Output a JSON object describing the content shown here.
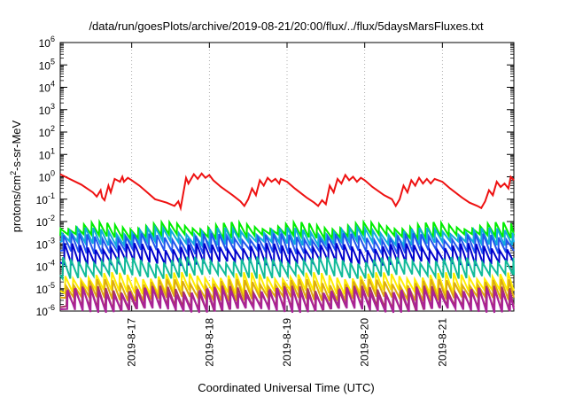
{
  "chart_data": {
    "type": "line",
    "title": "/data/run/goesPlots/archive/2019-08-21/20:00/flux/../flux/5daysMarsFluxes.txt",
    "xlabel": "Coordinated Universal Time (UTC)",
    "ylabel_parts": [
      "protons/cm",
      "2",
      "-s-sr-MeV"
    ],
    "y_scale": "log",
    "ylim": [
      1e-06,
      1000000.0
    ],
    "y_ticks": [
      {
        "base": "10",
        "exp": "6",
        "value": 6
      },
      {
        "base": "10",
        "exp": "5",
        "value": 5
      },
      {
        "base": "10",
        "exp": "4",
        "value": 4
      },
      {
        "base": "10",
        "exp": "3",
        "value": 3
      },
      {
        "base": "10",
        "exp": "2",
        "value": 2
      },
      {
        "base": "10",
        "exp": "1",
        "value": 1
      },
      {
        "base": "10",
        "exp": "0",
        "value": 0
      },
      {
        "base": "10",
        "exp": "-1",
        "value": -1
      },
      {
        "base": "10",
        "exp": "-2",
        "value": -2
      },
      {
        "base": "10",
        "exp": "-3",
        "value": -3
      },
      {
        "base": "10",
        "exp": "-4",
        "value": -4
      },
      {
        "base": "10",
        "exp": "-5",
        "value": -5
      },
      {
        "base": "10",
        "exp": "-6",
        "value": -6
      }
    ],
    "xlim_days": [
      16.08,
      21.92
    ],
    "x_ticks": [
      {
        "label": "2019-8-17",
        "day": 17
      },
      {
        "label": "2019-8-18",
        "day": 18
      },
      {
        "label": "2019-8-19",
        "day": 19
      },
      {
        "label": "2019-8-20",
        "day": 20
      },
      {
        "label": "2019-8-21",
        "day": 21
      }
    ],
    "grid": true,
    "series": [
      {
        "color": "#ee1111",
        "points": [
          [
            16.08,
            1.3
          ],
          [
            16.2,
            0.8
          ],
          [
            16.35,
            0.45
          ],
          [
            16.5,
            0.2
          ],
          [
            16.55,
            0.13
          ],
          [
            16.6,
            0.25
          ],
          [
            16.62,
            0.12
          ],
          [
            16.65,
            0.09
          ],
          [
            16.7,
            0.4
          ],
          [
            16.73,
            0.2
          ],
          [
            16.78,
            0.8
          ],
          [
            16.85,
            0.6
          ],
          [
            16.88,
            1.0
          ],
          [
            16.9,
            0.6
          ],
          [
            16.95,
            0.9
          ],
          [
            17.0,
            0.7
          ],
          [
            17.1,
            0.4
          ],
          [
            17.2,
            0.2
          ],
          [
            17.3,
            0.1
          ],
          [
            17.45,
            0.07
          ],
          [
            17.55,
            0.05
          ],
          [
            17.6,
            0.08
          ],
          [
            17.63,
            0.04
          ],
          [
            17.7,
            0.9
          ],
          [
            17.73,
            0.5
          ],
          [
            17.8,
            1.3
          ],
          [
            17.85,
            0.8
          ],
          [
            17.9,
            1.4
          ],
          [
            17.95,
            0.9
          ],
          [
            18.0,
            1.2
          ],
          [
            18.05,
            0.7
          ],
          [
            18.15,
            0.35
          ],
          [
            18.3,
            0.15
          ],
          [
            18.4,
            0.08
          ],
          [
            18.45,
            0.05
          ],
          [
            18.5,
            0.1
          ],
          [
            18.55,
            0.3
          ],
          [
            18.6,
            0.15
          ],
          [
            18.65,
            0.7
          ],
          [
            18.7,
            0.4
          ],
          [
            18.75,
            0.9
          ],
          [
            18.8,
            0.6
          ],
          [
            18.85,
            0.8
          ],
          [
            18.9,
            0.5
          ],
          [
            18.92,
            0.8
          ],
          [
            19.0,
            0.6
          ],
          [
            19.1,
            0.3
          ],
          [
            19.25,
            0.12
          ],
          [
            19.35,
            0.07
          ],
          [
            19.4,
            0.05
          ],
          [
            19.45,
            0.09
          ],
          [
            19.5,
            0.06
          ],
          [
            19.55,
            0.4
          ],
          [
            19.6,
            0.2
          ],
          [
            19.65,
            0.8
          ],
          [
            19.7,
            0.5
          ],
          [
            19.75,
            1.2
          ],
          [
            19.8,
            0.7
          ],
          [
            19.85,
            1.0
          ],
          [
            19.9,
            0.6
          ],
          [
            19.95,
            0.9
          ],
          [
            20.0,
            0.7
          ],
          [
            20.1,
            0.35
          ],
          [
            20.25,
            0.15
          ],
          [
            20.35,
            0.1
          ],
          [
            20.4,
            0.05
          ],
          [
            20.45,
            0.1
          ],
          [
            20.5,
            0.4
          ],
          [
            20.55,
            0.2
          ],
          [
            20.6,
            0.7
          ],
          [
            20.65,
            0.4
          ],
          [
            20.7,
            0.9
          ],
          [
            20.75,
            0.5
          ],
          [
            20.8,
            0.8
          ],
          [
            20.85,
            0.5
          ],
          [
            20.9,
            0.8
          ],
          [
            21.0,
            0.6
          ],
          [
            21.1,
            0.3
          ],
          [
            21.25,
            0.12
          ],
          [
            21.35,
            0.07
          ],
          [
            21.45,
            0.05
          ],
          [
            21.5,
            0.04
          ],
          [
            21.55,
            0.08
          ],
          [
            21.6,
            0.25
          ],
          [
            21.65,
            0.15
          ],
          [
            21.7,
            0.6
          ],
          [
            21.75,
            0.35
          ],
          [
            21.8,
            0.5
          ],
          [
            21.85,
            0.3
          ],
          [
            21.88,
            1.0
          ],
          [
            21.92,
            0.7
          ]
        ]
      }
    ],
    "sawtooth_series": [
      {
        "color": "#00ee00",
        "low": 0.0025,
        "high": 0.007,
        "period": 0.1,
        "phase": 0.0
      },
      {
        "color": "#11aadd",
        "low": 0.0012,
        "high": 0.004,
        "period": 0.1,
        "phase": 0.02
      },
      {
        "color": "#2255ee",
        "low": 0.0005,
        "high": 0.0022,
        "period": 0.1,
        "phase": 0.04
      },
      {
        "color": "#0000cc",
        "low": 0.00015,
        "high": 0.0008,
        "period": 0.1,
        "phase": 0.05
      },
      {
        "color": "#11bb99",
        "low": 4e-05,
        "high": 0.0002,
        "period": 0.1,
        "phase": 0.03
      },
      {
        "color": "#ffee00",
        "low": 8e-06,
        "high": 4e-05,
        "period": 0.1,
        "phase": 0.06
      },
      {
        "color": "#ddaa11",
        "low": 4e-06,
        "high": 2e-05,
        "period": 0.1,
        "phase": 0.07
      },
      {
        "color": "#aa3366",
        "low": 1.5e-06,
        "high": 1e-05,
        "period": 0.1,
        "phase": 0.08
      },
      {
        "color": "#aa2299",
        "low": 1.2e-06,
        "high": 8e-06,
        "period": 0.1,
        "phase": 0.09
      }
    ]
  }
}
